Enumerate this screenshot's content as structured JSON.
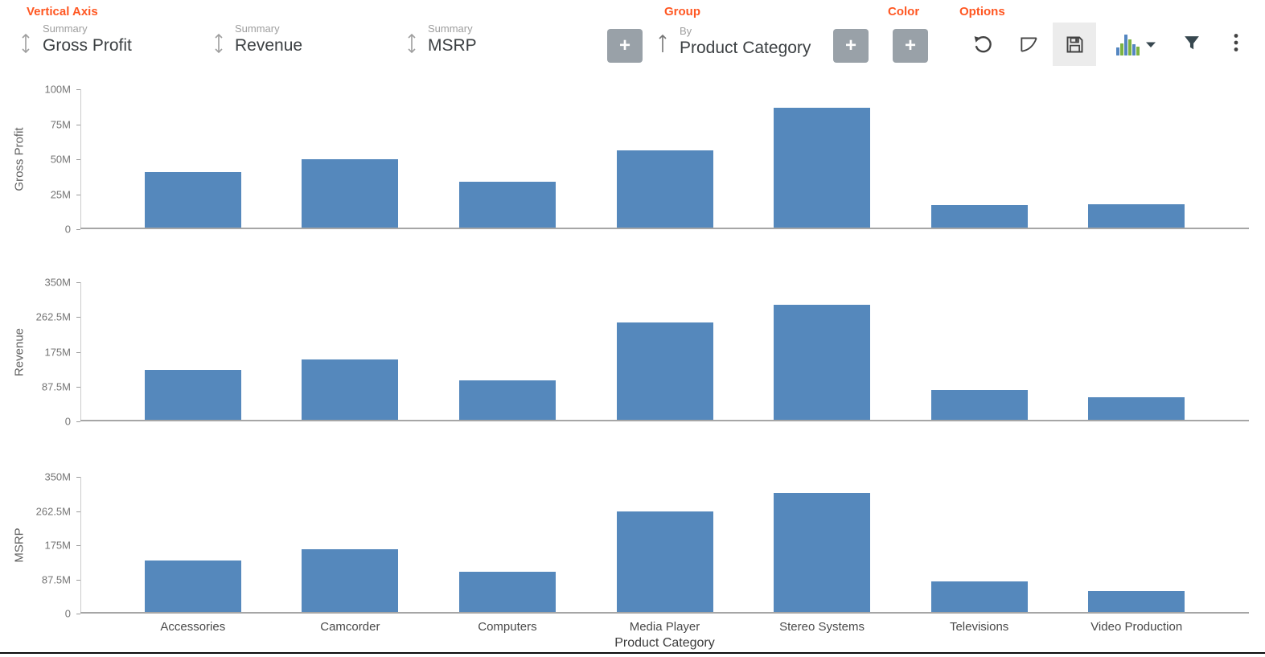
{
  "header": {
    "vertical_axis_label": "Vertical Axis",
    "group_label": "Group",
    "color_label": "Color",
    "options_label": "Options",
    "summaries": [
      {
        "label": "Summary",
        "value": "Gross Profit"
      },
      {
        "label": "Summary",
        "value": "Revenue"
      },
      {
        "label": "Summary",
        "value": "MSRP"
      }
    ],
    "group_by": {
      "label": "By",
      "value": "Product Category"
    },
    "add_button": "+",
    "options_icons": [
      "undo-icon",
      "trend-icon",
      "save-icon",
      "chart-type-icon",
      "filter-icon",
      "more-vertical-icon"
    ]
  },
  "colors": {
    "accent_orange": "#FF5722",
    "bar_blue": "#5588BC",
    "button_gray": "#99A1A8",
    "icon_dark": "#424242",
    "mini_bar_blue": "#5486C1",
    "mini_bar_green": "#7CB342"
  },
  "chart_data": [
    {
      "type": "bar",
      "ylabel": "Gross Profit",
      "unit": "M",
      "categories": [
        "Accessories",
        "Camcorder",
        "Computers",
        "Media Player",
        "Stereo Systems",
        "Televisions",
        "Video Production"
      ],
      "values_m": [
        40,
        49.5,
        33.5,
        55.5,
        86,
        16.5,
        17.5
      ],
      "ylim_m": [
        0,
        100
      ],
      "yticks": [
        {
          "value": 0,
          "label": "0"
        },
        {
          "value": 25,
          "label": "25M"
        },
        {
          "value": 50,
          "label": "50M"
        },
        {
          "value": 75,
          "label": "75M"
        },
        {
          "value": 100,
          "label": "100M"
        }
      ],
      "xlabel": "",
      "show_x_labels": false,
      "grid": false,
      "legend": "none"
    },
    {
      "type": "bar",
      "ylabel": "Revenue",
      "unit": "M",
      "categories": [
        "Accessories",
        "Camcorder",
        "Computers",
        "Media Player",
        "Stereo Systems",
        "Televisions",
        "Video Production"
      ],
      "values_m": [
        127,
        154,
        102,
        246,
        292,
        77,
        58
      ],
      "ylim_m": [
        0,
        350
      ],
      "yticks": [
        {
          "value": 0,
          "label": "0"
        },
        {
          "value": 87.5,
          "label": "87.5M"
        },
        {
          "value": 175,
          "label": "175M"
        },
        {
          "value": 262.5,
          "label": "262.5M"
        },
        {
          "value": 350,
          "label": "350M"
        }
      ],
      "xlabel": "",
      "show_x_labels": false,
      "grid": false,
      "legend": "none"
    },
    {
      "type": "bar",
      "ylabel": "MSRP",
      "unit": "M",
      "categories": [
        "Accessories",
        "Camcorder",
        "Computers",
        "Media Player",
        "Stereo Systems",
        "Televisions",
        "Video Production"
      ],
      "values_m": [
        134,
        162,
        106,
        259,
        306,
        80,
        56
      ],
      "ylim_m": [
        0,
        350
      ],
      "yticks": [
        {
          "value": 0,
          "label": "0"
        },
        {
          "value": 87.5,
          "label": "87.5M"
        },
        {
          "value": 175,
          "label": "175M"
        },
        {
          "value": 262.5,
          "label": "262.5M"
        },
        {
          "value": 350,
          "label": "350M"
        }
      ],
      "xlabel": "Product Category",
      "show_x_labels": true,
      "grid": false,
      "legend": "none"
    }
  ]
}
